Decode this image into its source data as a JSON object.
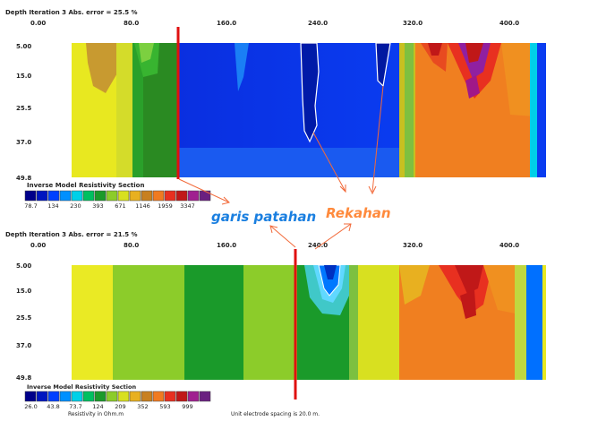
{
  "top": {
    "header": "Depth  Iteration 3 Abs. error = 25.5 %",
    "ticks": [
      "0.00",
      "80.0",
      "160.0",
      "240.0",
      "320.0",
      "400.0"
    ],
    "depths": [
      "5.00",
      "15.0",
      "25.5",
      "37.0",
      "49.8"
    ],
    "legend_title": "Inverse Model Resistivity Section",
    "legend_values": [
      "78.7",
      "134",
      "230",
      "393",
      "671",
      "1146",
      "1959",
      "3347"
    ]
  },
  "bottom": {
    "header": "Depth  Iteration 3 Abs. error = 21.5 %",
    "ticks": [
      "0.00",
      "80.0",
      "160.0",
      "240.0",
      "320.0",
      "400.0"
    ],
    "depths": [
      "5.00",
      "15.0",
      "25.5",
      "37.0",
      "49.8"
    ],
    "legend_title": "Inverse Model Resistivity Section",
    "legend_values": [
      "26.0",
      "43.8",
      "73.7",
      "124",
      "209",
      "352",
      "593",
      "999"
    ],
    "units": "Resistivity in Ohm.m",
    "spacing": "Unit electrode spacing is 20.0 m."
  },
  "annotations": {
    "fault": "garis patahan",
    "cracks": "Rekahan"
  },
  "colors": {
    "fault_label": "#1a7fe0",
    "cracks_label": "#ff8a3c",
    "fault_line": "#e01010",
    "arrow": "#f26a3a"
  },
  "palette": [
    "#00008a",
    "#0016c0",
    "#0040ff",
    "#0090ff",
    "#00d0e8",
    "#00c060",
    "#1a9a2a",
    "#8ccc2a",
    "#d8e020",
    "#e8b020",
    "#c88020",
    "#f07a20",
    "#e83020",
    "#c01818",
    "#a02090",
    "#6a2080"
  ]
}
